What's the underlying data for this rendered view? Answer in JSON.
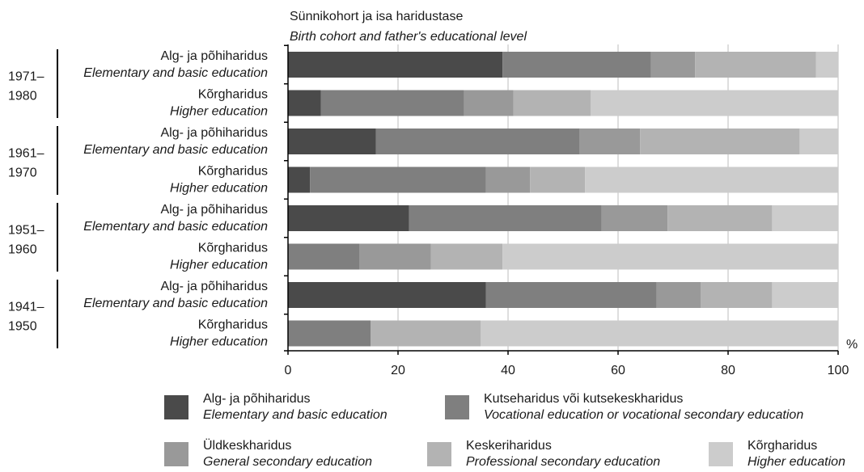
{
  "chart_data": {
    "type": "bar",
    "orientation": "horizontal",
    "stacked": true,
    "title": "Sünnikohort ja isa haridustase",
    "subtitle": "Birth cohort and father's educational level",
    "xlabel": "%",
    "xlim": [
      0,
      100
    ],
    "xticks": [
      "0",
      "20",
      "40",
      "60",
      "80",
      "100"
    ],
    "grid": true,
    "legend_position": "bottom",
    "groups": [
      {
        "label_top": "1971–",
        "label_bottom": "1980"
      },
      {
        "label_top": "1961–",
        "label_bottom": "1970"
      },
      {
        "label_top": "1951–",
        "label_bottom": "1960"
      },
      {
        "label_top": "1941–",
        "label_bottom": "1950"
      }
    ],
    "categories": [
      {
        "et": "Alg- ja põhiharidus",
        "en": "Elementary and basic education",
        "group": 0
      },
      {
        "et": "Kõrgharidus",
        "en": "Higher education",
        "group": 0
      },
      {
        "et": "Alg- ja põhiharidus",
        "en": "Elementary and basic education",
        "group": 1
      },
      {
        "et": "Kõrgharidus",
        "en": "Higher education",
        "group": 1
      },
      {
        "et": "Alg- ja põhiharidus",
        "en": "Elementary and basic education",
        "group": 2
      },
      {
        "et": "Kõrgharidus",
        "en": "Higher education",
        "group": 2
      },
      {
        "et": "Alg- ja põhiharidus",
        "en": "Elementary and basic education",
        "group": 3
      },
      {
        "et": "Kõrgharidus",
        "en": "Higher education",
        "group": 3
      }
    ],
    "series": [
      {
        "name_et": "Alg- ja põhiharidus",
        "name_en": "Elementary and basic education",
        "color": "#4a4a4a",
        "values": [
          39,
          6,
          16,
          4,
          22,
          0,
          36,
          0
        ]
      },
      {
        "name_et": "Kutseharidus või kutsekeskharidus",
        "name_en": "Vocational education or vocational secondary education",
        "color": "#7f7f7f",
        "values": [
          27,
          26,
          37,
          32,
          35,
          13,
          31,
          15
        ]
      },
      {
        "name_et": "Üldkeskharidus",
        "name_en": "General secondary education",
        "color": "#999999",
        "values": [
          8,
          9,
          11,
          8,
          12,
          13,
          8,
          0
        ]
      },
      {
        "name_et": "Keskeriharidus",
        "name_en": "Professional secondary education",
        "color": "#b3b3b3",
        "values": [
          22,
          14,
          29,
          10,
          19,
          13,
          13,
          20
        ]
      },
      {
        "name_et": "Kõrgharidus",
        "name_en": "Higher education",
        "color": "#cccccc",
        "values": [
          4,
          45,
          7,
          46,
          12,
          61,
          12,
          65
        ]
      }
    ]
  }
}
